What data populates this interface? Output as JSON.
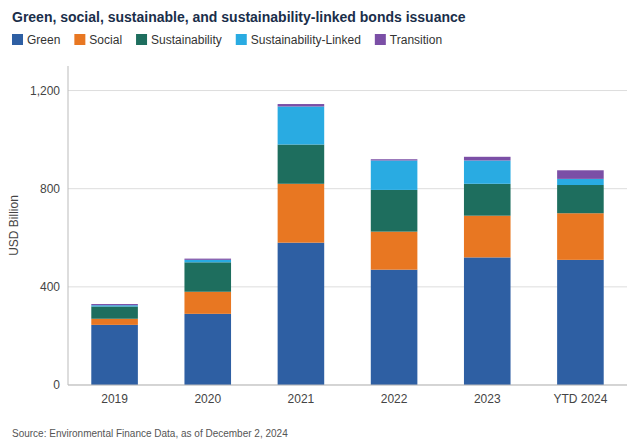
{
  "chart_data": {
    "type": "bar",
    "stacked": true,
    "title": "Green, social, sustainable, and sustainability-linked bonds issuance",
    "categories": [
      "2019",
      "2020",
      "2021",
      "2022",
      "2023",
      "YTD 2024"
    ],
    "series": [
      {
        "name": "Green",
        "color": "#2E5FA3",
        "values": [
          245,
          290,
          580,
          470,
          520,
          510
        ]
      },
      {
        "name": "Social",
        "color": "#E87722",
        "values": [
          25,
          90,
          240,
          155,
          170,
          190
        ]
      },
      {
        "name": "Sustainability",
        "color": "#1E6E5E",
        "values": [
          50,
          120,
          160,
          170,
          130,
          115
        ]
      },
      {
        "name": "Sustainability-Linked",
        "color": "#29ABE2",
        "values": [
          5,
          10,
          155,
          120,
          95,
          25
        ]
      },
      {
        "name": "Transition",
        "color": "#7B4FA6",
        "values": [
          5,
          5,
          10,
          5,
          15,
          35
        ]
      }
    ],
    "ylabel": "USD Billion",
    "ylim": [
      0,
      1300
    ],
    "yticks": [
      0,
      400,
      800,
      {
        "value": 1200,
        "label": "1,200"
      }
    ],
    "grid": true,
    "legend": "top",
    "source": "Source: Environmental Finance Data, as of December 2, 2024"
  }
}
